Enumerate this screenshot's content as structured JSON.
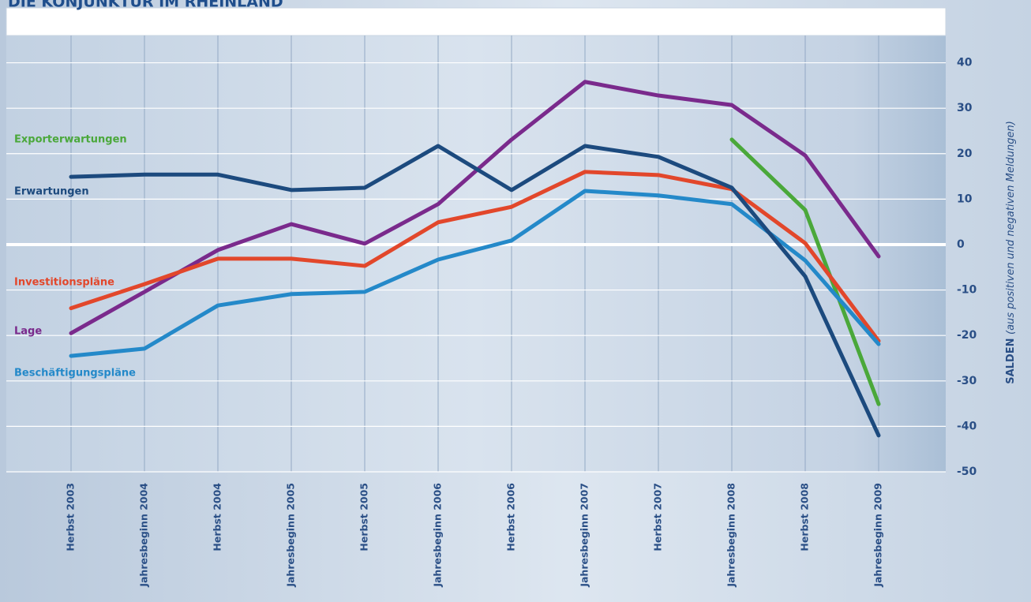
{
  "chart_data": {
    "type": "line",
    "title": "DIE KONJUNKTUR IM RHEINLAND",
    "y_axis_label": "SALDEN",
    "y_axis_label_note": "(aus positiven und negativen Meldungen)",
    "categories": [
      "Herbst 2003",
      "Jahresbeginn 2004",
      "Herbst 2004",
      "Jahresbeginn 2005",
      "Herbst 2005",
      "Jahresbeginn 2006",
      "Herbst 2006",
      "Jahresbeginn 2007",
      "Herbst 2007",
      "Jahresbeginn 2008",
      "Herbst 2008",
      "Jahresbeginn 2009"
    ],
    "series": [
      {
        "name": "Exporterwartungen",
        "color": "#4aa83a",
        "values": [
          null,
          null,
          null,
          null,
          null,
          null,
          null,
          null,
          null,
          23.1,
          7.6,
          -35.1
        ]
      },
      {
        "name": "Erwartungen",
        "color": "#1c4a7e",
        "values": [
          14.9,
          15.4,
          15.4,
          12,
          12.5,
          21.7,
          12,
          21.7,
          19.3,
          12.5,
          -7,
          -42
        ]
      },
      {
        "name": "Investitionspläne",
        "color": "#e2472b",
        "values": [
          -14,
          -8.7,
          -3.1,
          -3.1,
          -4.7,
          4.9,
          8.3,
          16,
          15.3,
          12.2,
          0.3,
          -21.2
        ]
      },
      {
        "name": "Lage",
        "color": "#7a2a8c",
        "values": [
          -19.5,
          -10.4,
          -1.2,
          4.5,
          0.2,
          8.9,
          23.1,
          35.8,
          32.8,
          30.7,
          19.6,
          -2.6
        ]
      },
      {
        "name": "Beschäftigungspläne",
        "color": "#2489c9",
        "values": [
          -24.5,
          -22.9,
          -13.4,
          -10.9,
          -10.4,
          -3.3,
          0.9,
          11.8,
          10.8,
          8.9,
          -3.5,
          -21.9
        ]
      }
    ],
    "ylim": [
      -50,
      46
    ],
    "yticks": [
      -50,
      -40,
      -30,
      -20,
      -10,
      0,
      10,
      20,
      30,
      40
    ],
    "grid": true
  }
}
